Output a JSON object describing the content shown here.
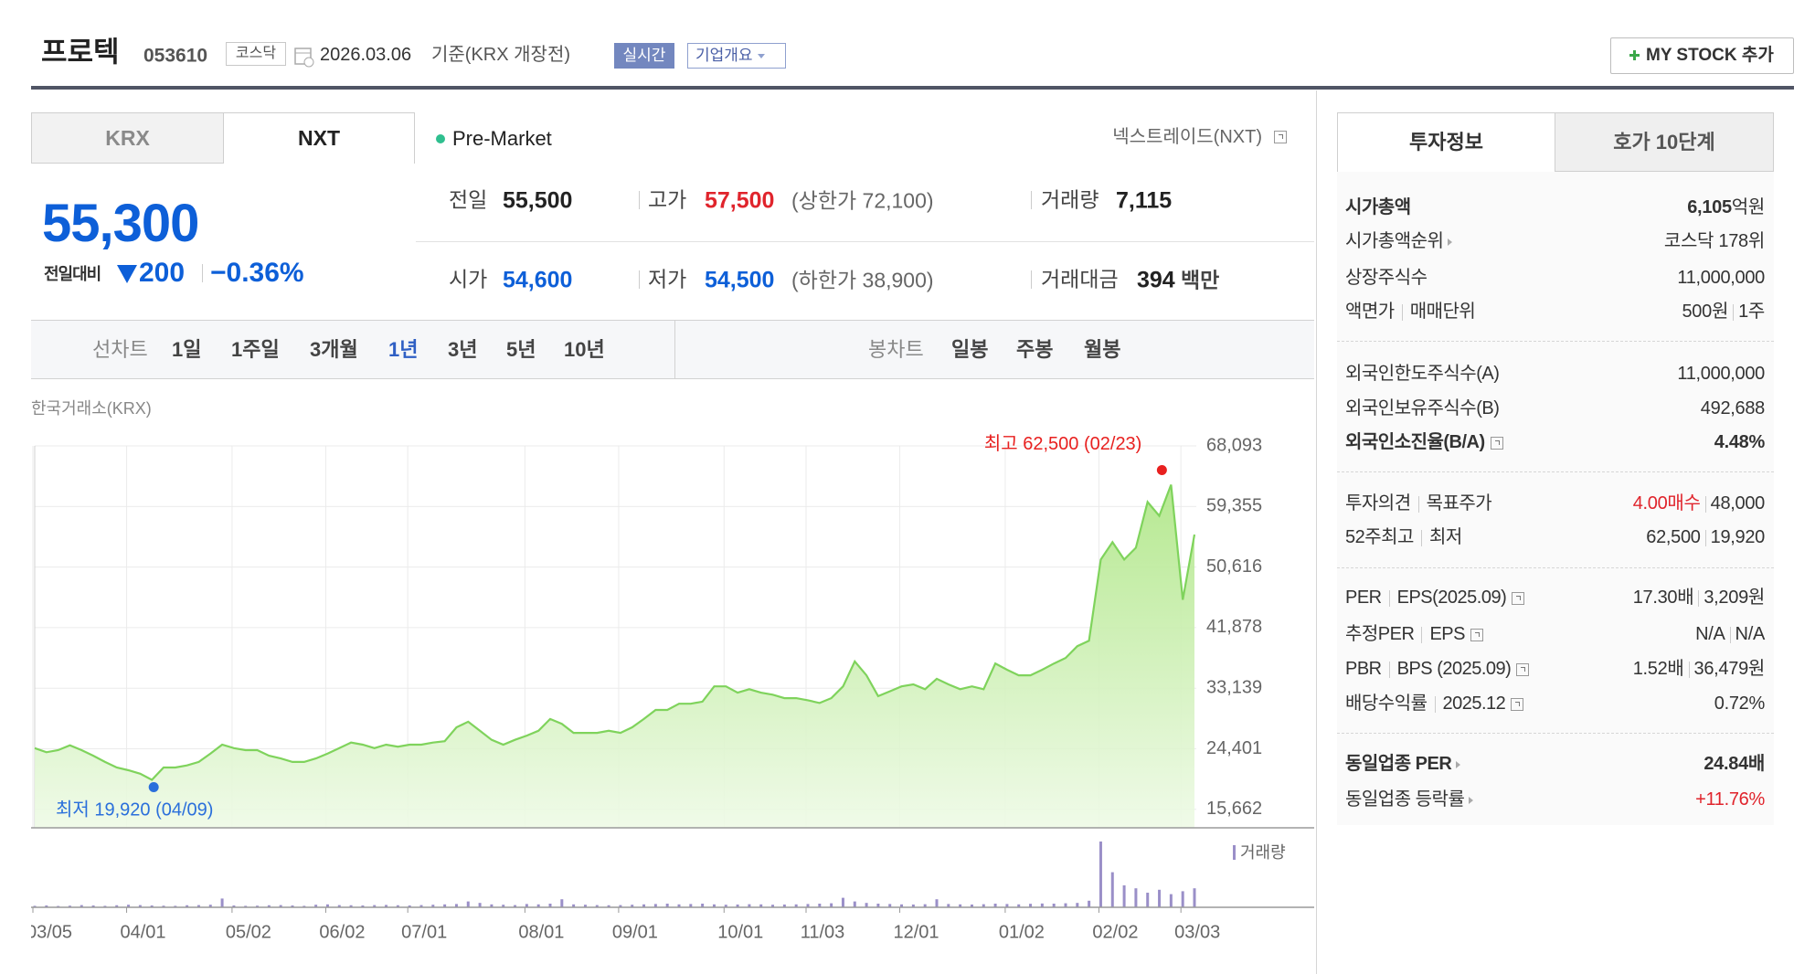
{
  "header": {
    "name": "프로텍",
    "code": "053610",
    "market": "코스닥",
    "date": "2026.03.06",
    "basis": "기준(KRX 개장전)",
    "realtime": "실시간",
    "company_info": "기업개요",
    "my_stock": "MY STOCK 추가"
  },
  "tabs": [
    "KRX",
    "NXT"
  ],
  "session": "Pre-Market",
  "nxt_link": "넥스트레이드(NXT)",
  "quote": {
    "price": "55,300",
    "change_label": "전일대비",
    "change": "200",
    "change_pct": "−0.36%"
  },
  "summary": [
    {
      "label": "전일",
      "value": "55,500"
    },
    {
      "label": "고가",
      "value": "57,500",
      "note": "(상한가 72,100)"
    },
    {
      "label": "거래량",
      "value": "7,115"
    },
    {
      "label": "시가",
      "value": "54,600"
    },
    {
      "label": "저가",
      "value": "54,500",
      "note": "(하한가 38,900)"
    },
    {
      "label": "거래대금",
      "value": "394",
      "unit": "백만"
    }
  ],
  "chart_tabs": {
    "line_label": "선차트",
    "line_periods": [
      "1일",
      "1주일",
      "3개월",
      "1년",
      "3년",
      "5년",
      "10년"
    ],
    "candle_label": "봉차트",
    "candle_periods": [
      "일봉",
      "주봉",
      "월봉"
    ]
  },
  "exchange": "한국거래소(KRX)",
  "chart_data": {
    "type": "line",
    "categories": [
      "03/05",
      null,
      null,
      null,
      null,
      null,
      null,
      null,
      "04/01",
      null,
      null,
      null,
      null,
      null,
      null,
      null,
      null,
      "05/02",
      null,
      null,
      null,
      null,
      null,
      null,
      null,
      "06/02",
      null,
      null,
      null,
      null,
      null,
      null,
      "07/01",
      null,
      null,
      null,
      null,
      null,
      null,
      null,
      null,
      null,
      "08/01",
      null,
      null,
      null,
      null,
      null,
      null,
      null,
      "09/01",
      null,
      null,
      null,
      null,
      null,
      null,
      null,
      null,
      "10/01",
      null,
      null,
      null,
      null,
      null,
      null,
      "11/03",
      null,
      null,
      null,
      null,
      null,
      null,
      null,
      "12/01",
      null,
      null,
      null,
      null,
      null,
      null,
      null,
      null,
      "01/02",
      null,
      null,
      null,
      null,
      null,
      null,
      null,
      "02/02",
      null,
      null,
      null,
      null,
      null,
      null,
      "03/03",
      null
    ],
    "series": [
      {
        "color": "#7fd35c",
        "values": [
          24500,
          23900,
          24200,
          24900,
          24200,
          23400,
          22500,
          21700,
          21300,
          20800,
          19920,
          21700,
          21700,
          22000,
          22500,
          23700,
          25000,
          24500,
          24200,
          24200,
          23400,
          23000,
          22500,
          22500,
          23000,
          23700,
          24500,
          25300,
          25000,
          24500,
          25000,
          24700,
          25000,
          25000,
          25300,
          25500,
          27500,
          28300,
          27000,
          25700,
          25000,
          25700,
          26300,
          27000,
          28700,
          28000,
          26700,
          26700,
          26700,
          27000,
          26700,
          27500,
          28700,
          30000,
          30000,
          30900,
          30900,
          31200,
          33400,
          33400,
          32500,
          33000,
          32500,
          32200,
          31700,
          31700,
          31400,
          31000,
          31700,
          33400,
          37000,
          35000,
          32000,
          32700,
          33400,
          33700,
          33000,
          34500,
          33700,
          33000,
          33400,
          33000,
          36700,
          35800,
          35000,
          35000,
          35800,
          36700,
          37500,
          39200,
          40000,
          51700,
          54200,
          51700,
          53400,
          60000,
          58000,
          62500,
          45900,
          55300
        ]
      },
      {
        "name": "거래량",
        "color": "#9a8fc8",
        "axis": "y2",
        "values": [
          20000,
          25000,
          18000,
          22000,
          30000,
          25000,
          20000,
          28000,
          35000,
          30000,
          25000,
          22000,
          20000,
          28000,
          30000,
          35000,
          120000,
          25000,
          20000,
          22000,
          28000,
          30000,
          25000,
          20000,
          35000,
          40000,
          30000,
          28000,
          25000,
          30000,
          32000,
          28000,
          25000,
          30000,
          35000,
          40000,
          45000,
          80000,
          60000,
          40000,
          35000,
          30000,
          45000,
          40000,
          50000,
          110000,
          40000,
          35000,
          30000,
          28000,
          30000,
          35000,
          40000,
          45000,
          50000,
          40000,
          45000,
          50000,
          40000,
          35000,
          38000,
          42000,
          40000,
          35000,
          38000,
          40000,
          45000,
          50000,
          55000,
          130000,
          80000,
          60000,
          50000,
          45000,
          40000,
          38000,
          42000,
          110000,
          45000,
          40000,
          38000,
          42000,
          50000,
          45000,
          40000,
          48000,
          52000,
          50000,
          55000,
          60000,
          90000,
          900000,
          480000,
          300000,
          260000,
          200000,
          240000,
          180000,
          220000,
          260000
        ]
      }
    ],
    "ylim": [
      13000,
      68100
    ],
    "yticks": [
      {
        "value": 15662,
        "label": "15,662"
      },
      {
        "value": 24401,
        "label": "24,401"
      },
      {
        "value": 33139,
        "label": "33,139"
      },
      {
        "value": 41878,
        "label": "41,878"
      },
      {
        "value": 50616,
        "label": "50,616"
      },
      {
        "value": 59355,
        "label": "59,355"
      },
      {
        "value": 68093,
        "label": "68,093"
      }
    ],
    "y2lim": [
      0,
      1000000
    ],
    "grid": true,
    "max_label": "최고 62,500 (02/23)",
    "min_label": "최저 19,920 (04/09)",
    "max_color": "#e8201f",
    "min_color": "#2a6fdb"
  },
  "invest_tabs": [
    "투자정보",
    "호가 10단계"
  ],
  "invest_rows": [
    {
      "label": [
        "시가총액"
      ],
      "value": [
        "6,105",
        "억원"
      ]
    },
    {
      "label": [
        "시가총액순위"
      ],
      "value": [
        "코스닥 178위"
      ]
    },
    {
      "label": [
        "상장주식수"
      ],
      "value": [
        "11,000,000"
      ]
    },
    {
      "label": [
        "액면가",
        "매매단위"
      ],
      "value": [
        "500원",
        "1주"
      ]
    },
    {
      "label": [
        "외국인한도주식수(A)"
      ],
      "value": [
        "11,000,000"
      ]
    },
    {
      "label": [
        "외국인보유주식수(B)"
      ],
      "value": [
        "492,688"
      ]
    },
    {
      "label": [
        "외국인소진율(B/A)"
      ],
      "value": [
        "4.48%"
      ]
    },
    {
      "label": [
        "투자의견",
        "목표주가"
      ],
      "value": [
        "4.00매수",
        "48,000"
      ]
    },
    {
      "label": [
        "52주최고",
        "최저"
      ],
      "value": [
        "62,500",
        "19,920"
      ]
    },
    {
      "label": [
        "PER",
        "EPS(2025.09)"
      ],
      "value": [
        "17.30배",
        "3,209원"
      ]
    },
    {
      "label": [
        "추정PER",
        "EPS"
      ],
      "value": [
        "N/A",
        "N/A"
      ]
    },
    {
      "label": [
        "PBR",
        "BPS (2025.09)"
      ],
      "value": [
        "1.52배",
        "36,479원"
      ]
    },
    {
      "label": [
        "배당수익률",
        "2025.12"
      ],
      "value": [
        "0.72%"
      ]
    },
    {
      "label": [
        "동일업종 PER"
      ],
      "value": [
        "24.84배"
      ]
    },
    {
      "label": [
        "동일업종 등락률"
      ],
      "value": [
        "+11.76%"
      ]
    }
  ]
}
